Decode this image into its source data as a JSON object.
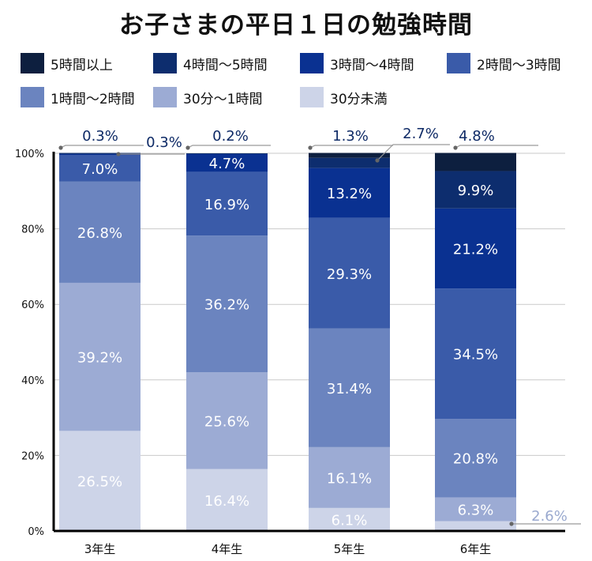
{
  "chart_data": {
    "type": "bar",
    "stacked": true,
    "title": "お子さまの平日１日の勉強時間",
    "categories": [
      "3年生",
      "4年生",
      "5年生",
      "6年生"
    ],
    "ylim": [
      0,
      100
    ],
    "yticks": [
      "0%",
      "20%",
      "40%",
      "60%",
      "80%",
      "100%"
    ],
    "grid": true,
    "legend_position": "top",
    "series": [
      {
        "name": "30分未満",
        "color": "#cdd4e8",
        "values": [
          26.5,
          16.4,
          6.1,
          2.6
        ],
        "labels": [
          "26.5%",
          "16.4%",
          "6.1%",
          "2.6%"
        ]
      },
      {
        "name": "30分～1時間",
        "color": "#9cabd4",
        "values": [
          39.2,
          25.6,
          16.1,
          6.3
        ],
        "labels": [
          "39.2%",
          "25.6%",
          "16.1%",
          "6.3%"
        ]
      },
      {
        "name": "1時間～2時間",
        "color": "#6b84bf",
        "values": [
          26.8,
          36.2,
          31.4,
          20.8
        ],
        "labels": [
          "26.8%",
          "36.2%",
          "31.4%",
          "20.8%"
        ]
      },
      {
        "name": "2時間～3時間",
        "color": "#3a5ba9",
        "values": [
          7.0,
          16.9,
          29.3,
          34.5
        ],
        "labels": [
          "7.0%",
          "16.9%",
          "29.3%",
          "34.5%"
        ]
      },
      {
        "name": "3時間～4時間",
        "color": "#0a3191",
        "values": [
          0.3,
          4.7,
          13.2,
          21.2
        ],
        "labels": [
          "0.3%",
          "4.7%",
          "13.2%",
          "21.2%"
        ]
      },
      {
        "name": "4時間～5時間",
        "color": "#0d2d6e",
        "values": [
          0.3,
          0.2,
          2.7,
          9.9
        ],
        "labels": [
          "0.3%",
          "0.2%",
          "2.7%",
          "9.9%"
        ]
      },
      {
        "name": "5時間以上",
        "color": "#0d1f3f",
        "values": [
          0.0,
          0.0,
          1.3,
          4.8
        ],
        "labels": [
          "",
          "",
          "1.3%",
          "4.8%"
        ]
      }
    ]
  },
  "legend": [
    {
      "label": "5時間以上",
      "color": "#0d1f3f"
    },
    {
      "label": "4時間～5時間",
      "color": "#0d2d6e"
    },
    {
      "label": "3時間～4時間",
      "color": "#0a3191"
    },
    {
      "label": "2時間～3時間",
      "color": "#3a5ba9"
    },
    {
      "label": "1時間～2時間",
      "color": "#6b84bf"
    },
    {
      "label": "30分～1時間",
      "color": "#9cabd4"
    },
    {
      "label": "30分未満",
      "color": "#cdd4e8"
    }
  ]
}
